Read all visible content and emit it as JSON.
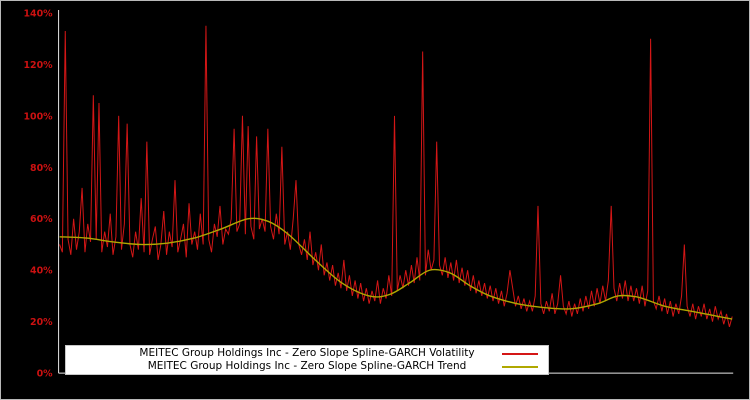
{
  "chart_data": {
    "type": "line",
    "title": "",
    "xlabel": "",
    "ylabel": "",
    "ylim": [
      0,
      140
    ],
    "grid": false,
    "background_color": "#000000",
    "axis_color": "#e8e8e8",
    "tick_color": "#cc1111",
    "legend_position": "bottom-center",
    "y_ticks": [
      "0%",
      "20%",
      "40%",
      "60%",
      "80%",
      "100%",
      "120%",
      "140%"
    ],
    "y_tick_values": [
      0,
      20,
      40,
      60,
      80,
      100,
      120,
      140
    ],
    "series": [
      {
        "name": "MEITEC Group Holdings Inc - Zero Slope Spline-GARCH Volatility",
        "color": "#d41616",
        "unit": "%",
        "values": [
          50,
          47,
          133,
          52,
          46,
          60,
          48,
          55,
          72,
          47,
          58,
          51,
          108,
          52,
          105,
          47,
          55,
          49,
          62,
          46,
          53,
          100,
          48,
          58,
          97,
          50,
          45,
          55,
          48,
          68,
          47,
          90,
          46,
          52,
          57,
          44,
          50,
          63,
          46,
          55,
          49,
          75,
          47,
          52,
          58,
          45,
          66,
          50,
          55,
          48,
          62,
          50,
          135,
          52,
          47,
          58,
          53,
          65,
          50,
          56,
          54,
          60,
          95,
          55,
          58,
          100,
          54,
          96,
          57,
          52,
          92,
          56,
          60,
          55,
          95,
          57,
          52,
          62,
          54,
          88,
          50,
          55,
          48,
          60,
          75,
          50,
          46,
          52,
          44,
          55,
          42,
          47,
          40,
          50,
          38,
          43,
          36,
          42,
          34,
          39,
          33,
          44,
          32,
          38,
          30,
          36,
          29,
          35,
          28,
          33,
          27,
          32,
          28,
          36,
          27,
          33,
          29,
          38,
          30,
          100,
          32,
          38,
          33,
          40,
          34,
          42,
          35,
          45,
          36,
          125,
          38,
          48,
          40,
          44,
          90,
          42,
          38,
          45,
          37,
          43,
          36,
          44,
          35,
          41,
          34,
          40,
          32,
          38,
          31,
          36,
          30,
          35,
          29,
          34,
          28,
          33,
          27,
          32,
          26,
          31,
          40,
          33,
          26,
          30,
          25,
          29,
          24,
          28,
          24,
          30,
          65,
          27,
          23,
          28,
          24,
          31,
          23,
          27,
          38,
          26,
          23,
          28,
          22,
          27,
          23,
          29,
          24,
          30,
          25,
          32,
          26,
          33,
          27,
          34,
          28,
          36,
          65,
          33,
          28,
          35,
          29,
          36,
          28,
          34,
          28,
          33,
          27,
          34,
          26,
          32,
          130,
          28,
          25,
          30,
          24,
          29,
          23,
          28,
          22,
          27,
          23,
          30,
          50,
          26,
          22,
          27,
          21,
          26,
          22,
          27,
          21,
          25,
          20,
          26,
          21,
          24,
          19,
          23,
          18,
          22
        ]
      },
      {
        "name": "MEITEC Group Holdings Inc - Zero Slope Spline-GARCH Trend",
        "color": "#b0a800",
        "unit": "%",
        "points": [
          [
            0,
            53
          ],
          [
            0.04,
            52.5
          ],
          [
            0.08,
            51
          ],
          [
            0.12,
            50
          ],
          [
            0.16,
            50.5
          ],
          [
            0.2,
            52.5
          ],
          [
            0.24,
            56
          ],
          [
            0.28,
            60
          ],
          [
            0.31,
            59
          ],
          [
            0.34,
            54
          ],
          [
            0.38,
            44
          ],
          [
            0.42,
            35
          ],
          [
            0.46,
            30
          ],
          [
            0.49,
            30.5
          ],
          [
            0.52,
            35
          ],
          [
            0.55,
            40
          ],
          [
            0.58,
            39
          ],
          [
            0.61,
            34
          ],
          [
            0.64,
            30
          ],
          [
            0.68,
            27
          ],
          [
            0.72,
            25.5
          ],
          [
            0.76,
            25
          ],
          [
            0.8,
            27
          ],
          [
            0.83,
            30
          ],
          [
            0.86,
            29.5
          ],
          [
            0.9,
            26
          ],
          [
            0.94,
            24
          ],
          [
            0.97,
            22.5
          ],
          [
            1,
            21
          ]
        ]
      }
    ]
  }
}
